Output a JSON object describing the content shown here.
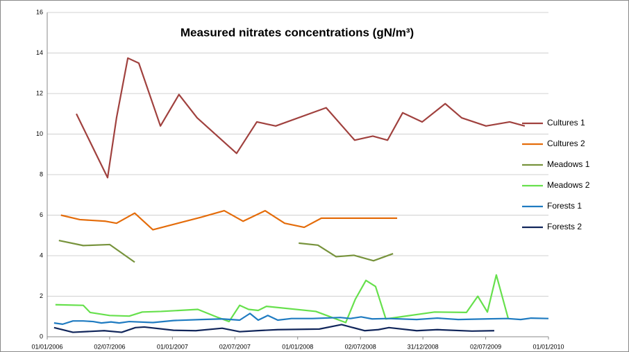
{
  "chart_data": {
    "type": "line",
    "title": "Measured nitrates concentrations (gN/m³)",
    "xlim": [
      38718,
      40179
    ],
    "xticks": [
      {
        "value": 38718,
        "label": "01/01/2006"
      },
      {
        "value": 38900,
        "label": "02/07/2006"
      },
      {
        "value": 39083,
        "label": "01/01/2007"
      },
      {
        "value": 39265,
        "label": "02/07/2007"
      },
      {
        "value": 39448,
        "label": "01/01/2008"
      },
      {
        "value": 39631,
        "label": "02/07/2008"
      },
      {
        "value": 39813,
        "label": "31/12/2008"
      },
      {
        "value": 39996,
        "label": "02/07/2009"
      },
      {
        "value": 40179,
        "label": "01/01/2010"
      }
    ],
    "ylim": [
      0,
      16
    ],
    "yticks": [
      0,
      2,
      4,
      6,
      8,
      10,
      12,
      14,
      16
    ],
    "grid": true,
    "legend": "right",
    "series": [
      {
        "name": "Cultures 1",
        "color": "#a0413e",
        "x": [
          38803,
          38894,
          38920,
          38953,
          38985,
          39048,
          39102,
          39155,
          39270,
          39329,
          39384,
          39531,
          39614,
          39667,
          39710,
          39754,
          39811,
          39878,
          39926,
          39997,
          40066,
          40110
        ],
        "values": [
          11.0,
          7.85,
          10.8,
          13.75,
          13.5,
          10.4,
          11.95,
          10.8,
          9.05,
          10.6,
          10.4,
          11.3,
          9.7,
          9.9,
          9.7,
          11.05,
          10.6,
          11.5,
          10.8,
          10.4,
          10.6,
          10.4
        ]
      },
      {
        "name": "Cultures 2",
        "color": "#e46c0a",
        "x": [
          38758,
          38813,
          38888,
          38920,
          38973,
          39026,
          39167,
          39234,
          39289,
          39353,
          39410,
          39467,
          39517,
          39738
        ],
        "values": [
          6.0,
          5.78,
          5.7,
          5.6,
          6.1,
          5.28,
          5.9,
          6.22,
          5.7,
          6.22,
          5.6,
          5.4,
          5.85,
          5.85
        ]
      },
      {
        "name": "Meadows 1",
        "color": "#77933c",
        "x": [
          38752,
          38823,
          38900,
          38973,
          39100,
          39451,
          39507,
          39560,
          39612,
          39669,
          39726
        ],
        "values": [
          4.75,
          4.5,
          4.55,
          3.68,
          null,
          4.62,
          4.52,
          3.95,
          4.02,
          3.75,
          4.1
        ]
      },
      {
        "name": "Meadows 2",
        "color": "#66e04c",
        "x": [
          38742,
          38823,
          38843,
          38900,
          38957,
          38995,
          39050,
          39157,
          39216,
          39248,
          39279,
          39305,
          39333,
          39357,
          39501,
          39588,
          39616,
          39647,
          39675,
          39705,
          39847,
          39940,
          39973,
          40001,
          40027,
          40062
        ],
        "values": [
          1.58,
          1.55,
          1.2,
          1.05,
          1.02,
          1.22,
          1.25,
          1.35,
          0.95,
          0.75,
          1.55,
          1.35,
          1.3,
          1.5,
          1.25,
          0.7,
          1.85,
          2.78,
          2.48,
          0.88,
          1.22,
          1.2,
          2.0,
          1.22,
          3.05,
          0.88
        ]
      },
      {
        "name": "Forests 1",
        "color": "#1f7bc1",
        "x": [
          38738,
          38763,
          38793,
          38823,
          38852,
          38876,
          38904,
          38928,
          38957,
          39026,
          39086,
          39167,
          39228,
          39279,
          39309,
          39333,
          39361,
          39390,
          39430,
          39491,
          39572,
          39602,
          39633,
          39665,
          39714,
          39795,
          39855,
          39916,
          39997,
          40058,
          40098,
          40128,
          40179
        ],
        "values": [
          0.68,
          0.62,
          0.78,
          0.78,
          0.75,
          0.68,
          0.73,
          0.68,
          0.75,
          0.7,
          0.8,
          0.85,
          0.88,
          0.82,
          1.15,
          0.82,
          1.05,
          0.82,
          0.9,
          0.9,
          0.95,
          0.9,
          0.98,
          0.88,
          0.9,
          0.85,
          0.92,
          0.85,
          0.88,
          0.9,
          0.85,
          0.92,
          0.9
        ]
      },
      {
        "name": "Forests 2",
        "color": "#10255a",
        "x": [
          38738,
          38793,
          38884,
          38935,
          38975,
          39001,
          39086,
          39151,
          39228,
          39279,
          39329,
          39390,
          39511,
          39576,
          39643,
          39683,
          39714,
          39795,
          39855,
          39956,
          40021
        ],
        "values": [
          0.45,
          0.22,
          0.3,
          0.22,
          0.45,
          0.48,
          0.32,
          0.3,
          0.42,
          0.25,
          0.3,
          0.35,
          0.38,
          0.6,
          0.3,
          0.35,
          0.45,
          0.3,
          0.35,
          0.28,
          0.3
        ]
      }
    ]
  }
}
